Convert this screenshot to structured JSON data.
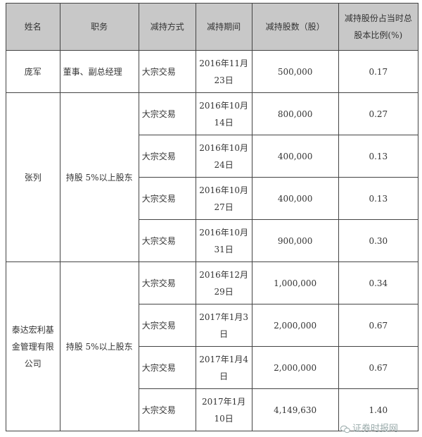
{
  "headers": [
    "姓名",
    "职务",
    "减持方式",
    "减持期间",
    "减持股数（股）",
    "减持股份占当时总股本比例(%)"
  ],
  "groups": [
    {
      "name": "庞军",
      "role": "董事、副总经理",
      "rows": [
        {
          "method": "大宗交易",
          "date": "2016年11月23日",
          "shares": "500,000",
          "ratio": "0.17"
        }
      ]
    },
    {
      "name": "张列",
      "role": "持股 5%以上股东",
      "rows": [
        {
          "method": "大宗交易",
          "date": "2016年10月14日",
          "shares": "800,000",
          "ratio": "0.27"
        },
        {
          "method": "大宗交易",
          "date": "2016年10月24日",
          "shares": "400,000",
          "ratio": "0.13"
        },
        {
          "method": "大宗交易",
          "date": "2016年10月27日",
          "shares": "400,000",
          "ratio": "0.13"
        },
        {
          "method": "大宗交易",
          "date": "2016年10月31日",
          "shares": "900,000",
          "ratio": "0.30"
        }
      ]
    },
    {
      "name": "泰达宏利基金管理有限公司",
      "role": "持股 5%以上股东",
      "rows": [
        {
          "method": "大宗交易",
          "date": "2016年12月29日",
          "shares": "1,000,000",
          "ratio": "0.34"
        },
        {
          "method": "大宗交易",
          "date": "2017年1月3日",
          "shares": "2,000,000",
          "ratio": "0.67"
        },
        {
          "method": "大宗交易",
          "date": "2017年1月4日",
          "shares": "2,000,000",
          "ratio": "0.67"
        },
        {
          "method": "大宗交易",
          "date": "2017年1月10日",
          "shares": "4,149,630",
          "ratio": "1.40"
        }
      ]
    }
  ],
  "watermark": "证券时报网",
  "colors": {
    "header_bg": "#c8c8c8",
    "border": "#444444"
  }
}
